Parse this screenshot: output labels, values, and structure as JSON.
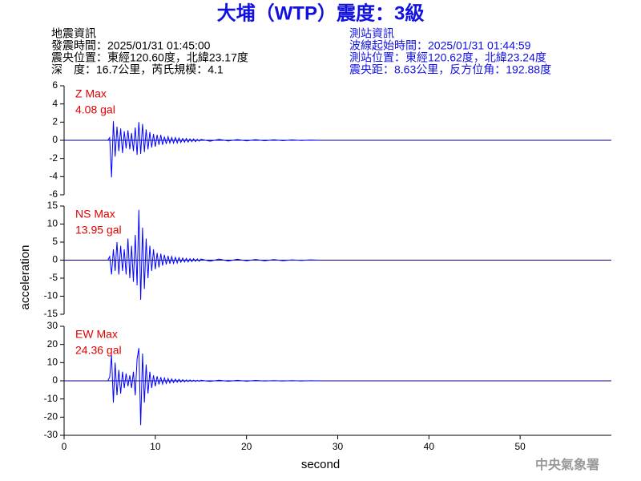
{
  "chart_data": {
    "type": "line",
    "title": "大埔（WTP）震度：3級",
    "info_left": [
      "地震資訊",
      "發震時間：2025/01/31 01:45:00",
      "震央位置：東經120.60度，北緯23.17度",
      "深　度：16.7公里，芮氏規模：4.1"
    ],
    "info_right": [
      "測站資訊",
      "波線起始時間：2025/01/31 01:44:59",
      "測站位置：東經120.62度，北緯23.24度",
      "震央距：8.63公里，反方位角：192.88度"
    ],
    "source": "中央氣象署",
    "xlabel": "second",
    "ylabel": "acceleration",
    "xlim": [
      0,
      60
    ],
    "xticks": [
      0,
      10,
      20,
      30,
      40,
      50
    ],
    "x": [
      4.8,
      5,
      5.2,
      5.4,
      5.6,
      5.8,
      6,
      6.2,
      6.4,
      6.6,
      6.8,
      7,
      7.2,
      7.4,
      7.6,
      7.8,
      8,
      8.2,
      8.4,
      8.6,
      8.8,
      9,
      9.2,
      9.4,
      9.6,
      9.8,
      10,
      10.2,
      10.4,
      10.6,
      10.8,
      11,
      11.2,
      11.4,
      11.6,
      11.8,
      12,
      12.2,
      12.4,
      12.6,
      12.8,
      13,
      13.2,
      13.4,
      13.6,
      13.8,
      14,
      14.2,
      14.4,
      14.6,
      14.8,
      15,
      16,
      17,
      18,
      19,
      20,
      21,
      22,
      23,
      24,
      25,
      26,
      27,
      28
    ],
    "series": [
      {
        "name": "Z Max",
        "max_label": "4.08 gal",
        "color": "#0000ff",
        "label_color": "#e00000",
        "ylim": [
          -6,
          6
        ],
        "yticks": [
          -6,
          -4,
          -2,
          0,
          2,
          4,
          6
        ],
        "values": [
          0,
          0.3,
          -4.08,
          2.1,
          -1.8,
          1.5,
          -1.2,
          1.3,
          -1.4,
          1.0,
          -0.9,
          1.1,
          -1.0,
          0.8,
          -1.2,
          1.4,
          -1.6,
          2.0,
          -1.5,
          1.8,
          -1.3,
          1.2,
          -1.0,
          0.9,
          -0.8,
          0.7,
          -0.7,
          0.6,
          -0.5,
          0.6,
          -0.5,
          0.4,
          -0.4,
          0.4,
          -0.3,
          0.3,
          -0.3,
          0.3,
          -0.3,
          0.25,
          -0.25,
          0.2,
          -0.2,
          0.2,
          -0.2,
          0.15,
          -0.15,
          0.15,
          -0.15,
          0.1,
          -0.1,
          0.1,
          -0.1,
          0.1,
          -0.08,
          0.08,
          -0.06,
          0.06,
          -0.05,
          0.05,
          -0.04,
          0.04,
          -0.03,
          0.03,
          0
        ]
      },
      {
        "name": "NS Max",
        "max_label": "13.95 gal",
        "color": "#0000ff",
        "label_color": "#e00000",
        "ylim": [
          -15,
          15
        ],
        "yticks": [
          -15,
          -10,
          -5,
          0,
          5,
          10,
          15
        ],
        "values": [
          0,
          1,
          -4,
          3,
          -3,
          5,
          -4,
          4,
          -3,
          3,
          -4,
          6,
          -5,
          4,
          -6,
          7,
          -7,
          13.95,
          -11,
          9,
          -8,
          6,
          -5,
          4,
          -3,
          3,
          -2.5,
          2,
          -2,
          1.8,
          -1.5,
          1.5,
          -1.2,
          1.2,
          -1,
          1,
          -0.9,
          0.8,
          -0.8,
          0.7,
          -0.6,
          0.6,
          -0.5,
          0.5,
          -0.5,
          0.4,
          -0.4,
          0.4,
          -0.3,
          0.3,
          -0.3,
          0.3,
          -0.3,
          0.3,
          -0.25,
          0.25,
          -0.2,
          0.2,
          -0.2,
          0.15,
          -0.15,
          0.1,
          -0.1,
          0.1,
          0
        ]
      },
      {
        "name": "EW Max",
        "max_label": "24.36 gal",
        "color": "#0000ff",
        "label_color": "#e00000",
        "ylim": [
          -30,
          30
        ],
        "yticks": [
          -30,
          -20,
          -10,
          0,
          10,
          20,
          30
        ],
        "values": [
          0,
          2,
          14,
          -12,
          10,
          -8,
          6,
          -7,
          5,
          -4,
          4,
          -3,
          3,
          -4,
          5,
          -8,
          12,
          18,
          -24.36,
          15,
          -12,
          9,
          -7,
          5,
          -4,
          3,
          -3,
          2.5,
          -2,
          2,
          -1.8,
          1.6,
          -1.5,
          1.3,
          -1.2,
          1,
          -1,
          0.9,
          -0.8,
          0.8,
          -0.7,
          0.6,
          -0.6,
          0.5,
          -0.5,
          0.5,
          -0.4,
          0.4,
          -0.4,
          0.3,
          -0.3,
          0.3,
          -0.3,
          0.3,
          -0.25,
          0.25,
          -0.2,
          0.2,
          -0.15,
          0.15,
          -0.1,
          0.1,
          -0.1,
          0.05,
          0
        ]
      }
    ]
  }
}
